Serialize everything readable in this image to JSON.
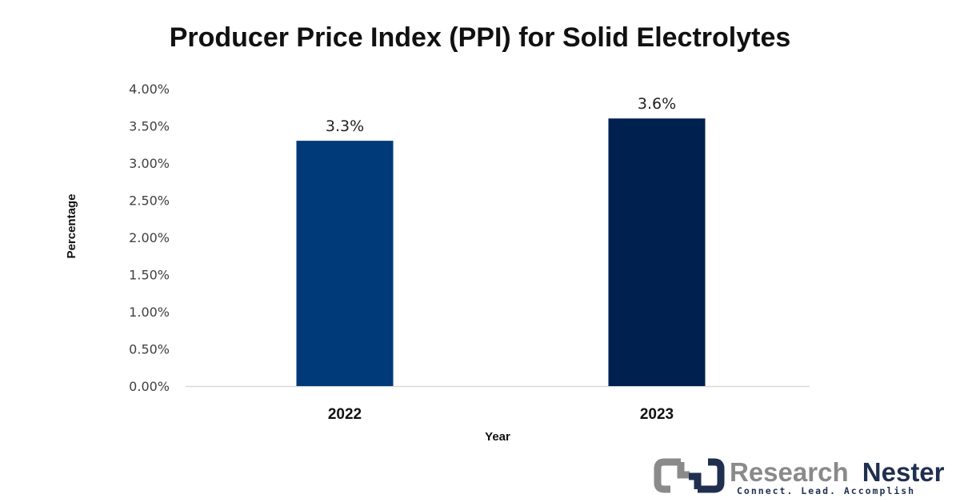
{
  "chart_data": {
    "type": "bar",
    "title": "Producer Price Index (PPI) for Solid Electrolytes",
    "xlabel": "Year",
    "ylabel": "Percentage",
    "categories": [
      "2022",
      "2023"
    ],
    "values": [
      3.3,
      3.6
    ],
    "data_labels": [
      "3.3%",
      "3.6%"
    ],
    "bar_colors": [
      "#003a78",
      "#00204f"
    ],
    "ylim": [
      0,
      4
    ],
    "yticks": [
      0,
      0.5,
      1,
      1.5,
      2,
      2.5,
      3,
      3.5,
      4
    ],
    "ytick_labels": [
      "0.00%",
      "0.50%",
      "1.00%",
      "1.50%",
      "2.00%",
      "2.50%",
      "3.00%",
      "3.50%",
      "4.00%"
    ],
    "grid": false,
    "legend": "none"
  },
  "branding": {
    "logo_word1": "Research",
    "logo_word2": "Nester",
    "tagline": "Connect. Lead. Accomplish",
    "gray": "#8a8a8a",
    "navy": "#1f2f4f"
  }
}
